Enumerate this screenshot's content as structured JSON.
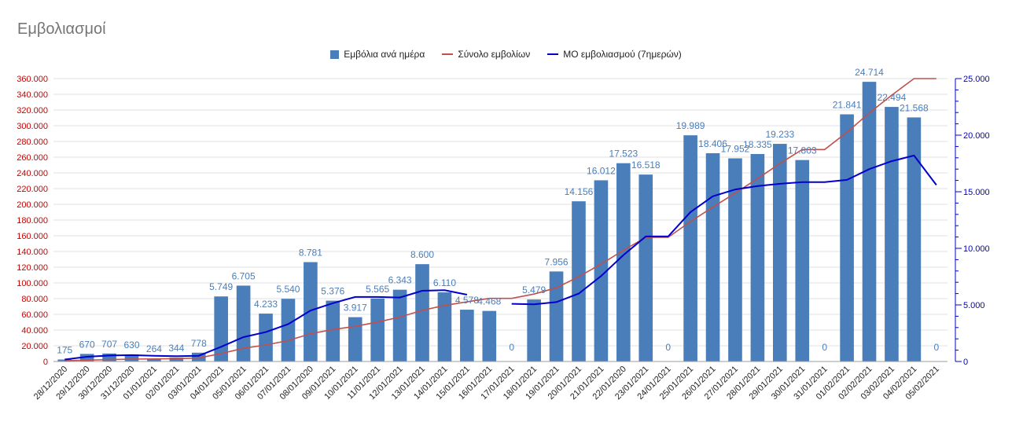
{
  "chart_data": {
    "type": "bar",
    "title": "Εμβολιασμοί",
    "categories": [
      "28/12/2020",
      "29/12/2020",
      "30/12/2020",
      "31/12/2020",
      "01/01/2021",
      "02/01/2021",
      "03/01/2021",
      "04/01/2021",
      "05/01/2021",
      "06/01/2021",
      "07/01/2021",
      "08/01/2020",
      "09/01/2021",
      "10/01/2021",
      "11/01/2021",
      "12/01/2021",
      "13/01/2021",
      "14/01/2021",
      "15/01/2021",
      "16/01/2021",
      "17/01/2021",
      "18/01/2021",
      "19/01/2021",
      "20/01/2021",
      "21/01/2021",
      "22/01/2020",
      "23/01/2021",
      "24/01/2021",
      "25/01/2021",
      "26/01/2021",
      "27/01/2021",
      "28/01/2021",
      "29/01/2021",
      "30/01/2021",
      "31/01/2021",
      "01/02/2021",
      "02/02/2021",
      "03/02/2021",
      "04/02/2021",
      "05/02/2021"
    ],
    "series": [
      {
        "name": "Εμβόλια ανά ημέρα",
        "kind": "bar",
        "axis": "right",
        "color": "#4a7ebb",
        "values": [
          175,
          670,
          707,
          630,
          264,
          344,
          778,
          5749,
          6705,
          4233,
          5540,
          8781,
          5376,
          3917,
          5565,
          6343,
          8600,
          6110,
          4578,
          4468,
          0,
          5479,
          7956,
          14156,
          16012,
          17523,
          16518,
          0,
          19989,
          18406,
          17952,
          18335,
          19233,
          17803,
          0,
          21841,
          24714,
          22494,
          21568,
          0
        ],
        "labels": [
          "175",
          "670",
          "707",
          "630",
          "264",
          "344",
          "778",
          "5.749",
          "6.705",
          "4.233",
          "5.540",
          "8.781",
          "5.376",
          "3.917",
          "5.565",
          "6.343",
          "8.600",
          "6.110",
          "4.578",
          "4.468",
          "0",
          "5.479",
          "7.956",
          "14.156",
          "16.012",
          "17.523",
          "16.518",
          "0",
          "19.989",
          "18.406",
          "17.952",
          "18.335",
          "19.233",
          "17.803",
          "0",
          "21.841",
          "24.714",
          "22.494",
          "21.568",
          "0"
        ]
      },
      {
        "name": "Σύνολο εμβολίων",
        "kind": "line",
        "axis": "left",
        "color": "#c0504d",
        "values": [
          1000,
          1700,
          2400,
          3000,
          3300,
          3600,
          4400,
          10100,
          16800,
          21000,
          26600,
          35400,
          40700,
          44700,
          50200,
          56500,
          65100,
          71300,
          75900,
          80300,
          80300,
          85800,
          93800,
          107900,
          124000,
          141500,
          158000,
          158000,
          178000,
          196400,
          214300,
          232700,
          251900,
          269700,
          269700,
          291600,
          316300,
          338800,
          360000,
          360000
        ]
      },
      {
        "name": "ΜΟ εμβολιασμού (7ημερών)",
        "kind": "line",
        "axis": "right",
        "color": "#0000cc",
        "values": [
          175,
          420,
          530,
          560,
          500,
          470,
          510,
          1300,
          2150,
          2600,
          3300,
          4500,
          5150,
          5700,
          5700,
          5650,
          6250,
          6300,
          5900,
          null,
          5100,
          5050,
          5250,
          6000,
          7550,
          9400,
          11050,
          11050,
          13200,
          14600,
          15200,
          15500,
          15700,
          15850,
          15850,
          16050,
          17000,
          17700,
          18200,
          15600
        ]
      }
    ],
    "yleft": {
      "min": 0,
      "max": 360000,
      "ticks": [
        0,
        20000,
        40000,
        60000,
        80000,
        100000,
        120000,
        140000,
        160000,
        180000,
        200000,
        220000,
        240000,
        260000,
        280000,
        300000,
        320000,
        340000,
        360000
      ],
      "tick_labels": [
        "0",
        "20.000",
        "40.000",
        "60.000",
        "80.000",
        "100.000",
        "120.000",
        "140.000",
        "160.000",
        "180.000",
        "200.000",
        "220.000",
        "240.000",
        "260.000",
        "280.000",
        "300.000",
        "320.000",
        "340.000",
        "360.000"
      ],
      "color": "#cc0000"
    },
    "yright": {
      "min": 0,
      "max": 25000,
      "ticks": [
        0,
        5000,
        10000,
        15000,
        20000,
        25000
      ],
      "tick_labels": [
        "0",
        "5.000",
        "10.000",
        "15.000",
        "20.000",
        "25.000"
      ],
      "color": "#0000cc"
    },
    "grid": true,
    "legend_position": "top"
  }
}
